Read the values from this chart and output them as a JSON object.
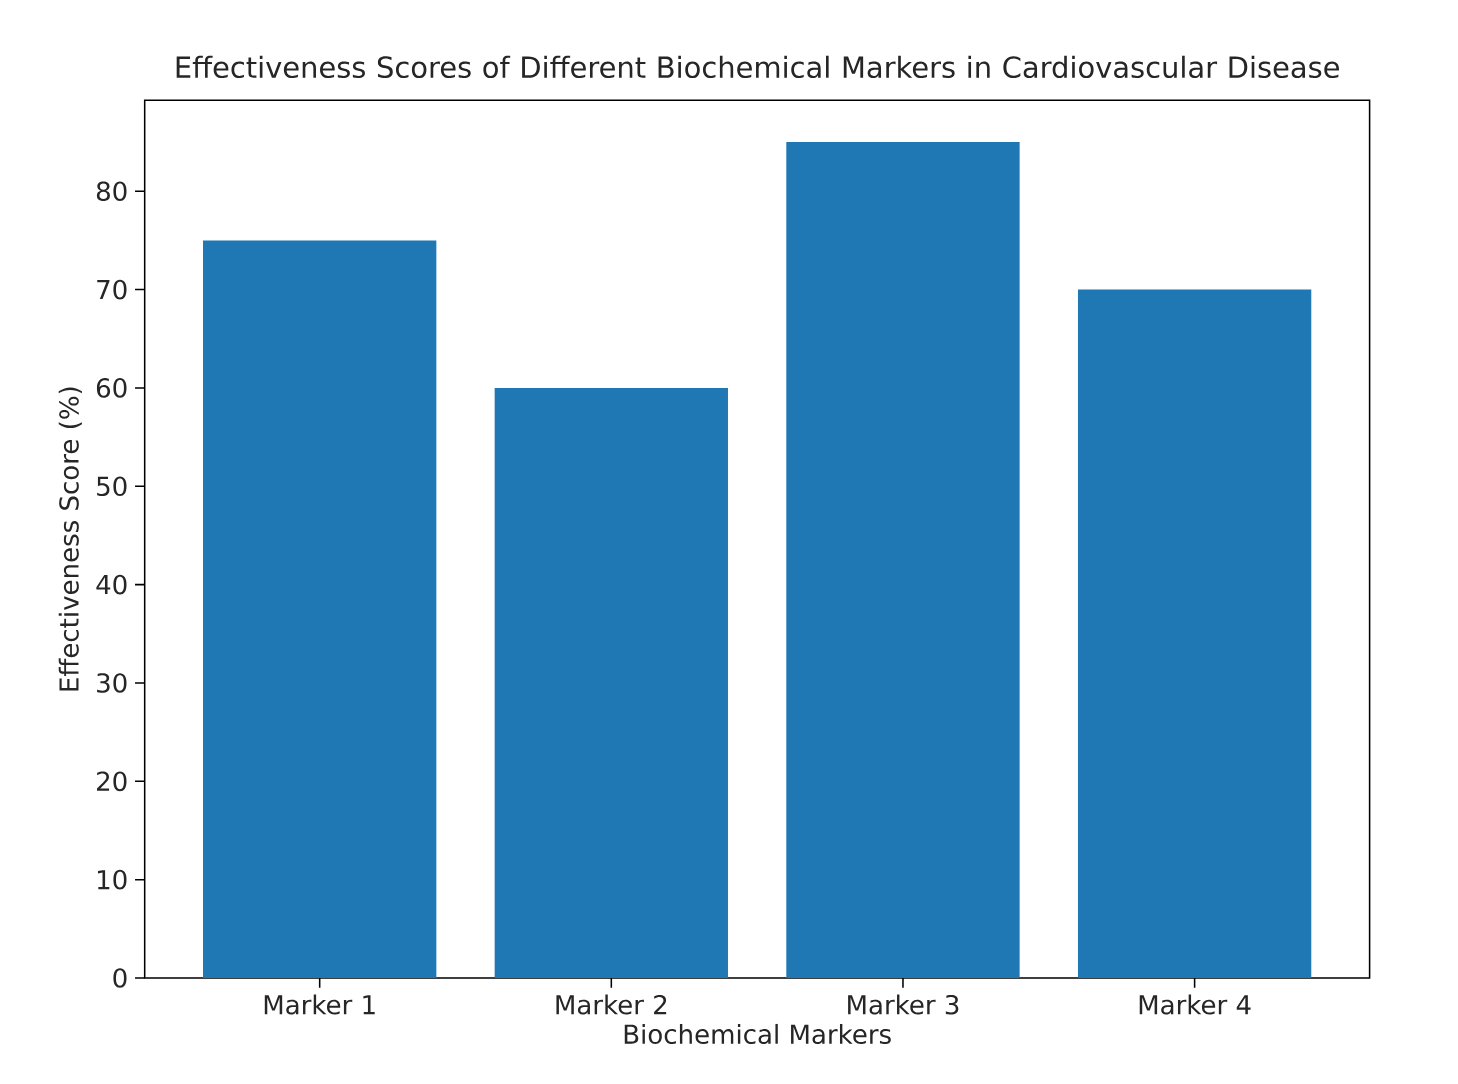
{
  "chart_data": {
    "type": "bar",
    "title": "Effectiveness Scores of Different Biochemical Markers in Cardiovascular Disease",
    "xlabel": "Biochemical Markers",
    "ylabel": "Effectiveness Score (%)",
    "categories": [
      "Marker 1",
      "Marker 2",
      "Marker 3",
      "Marker 4"
    ],
    "values": [
      75,
      60,
      85,
      70
    ],
    "color": "#1f77b4",
    "ylim": [
      0,
      89.25
    ],
    "yticks": [
      0,
      10,
      20,
      30,
      40,
      50,
      60,
      70,
      80
    ]
  }
}
